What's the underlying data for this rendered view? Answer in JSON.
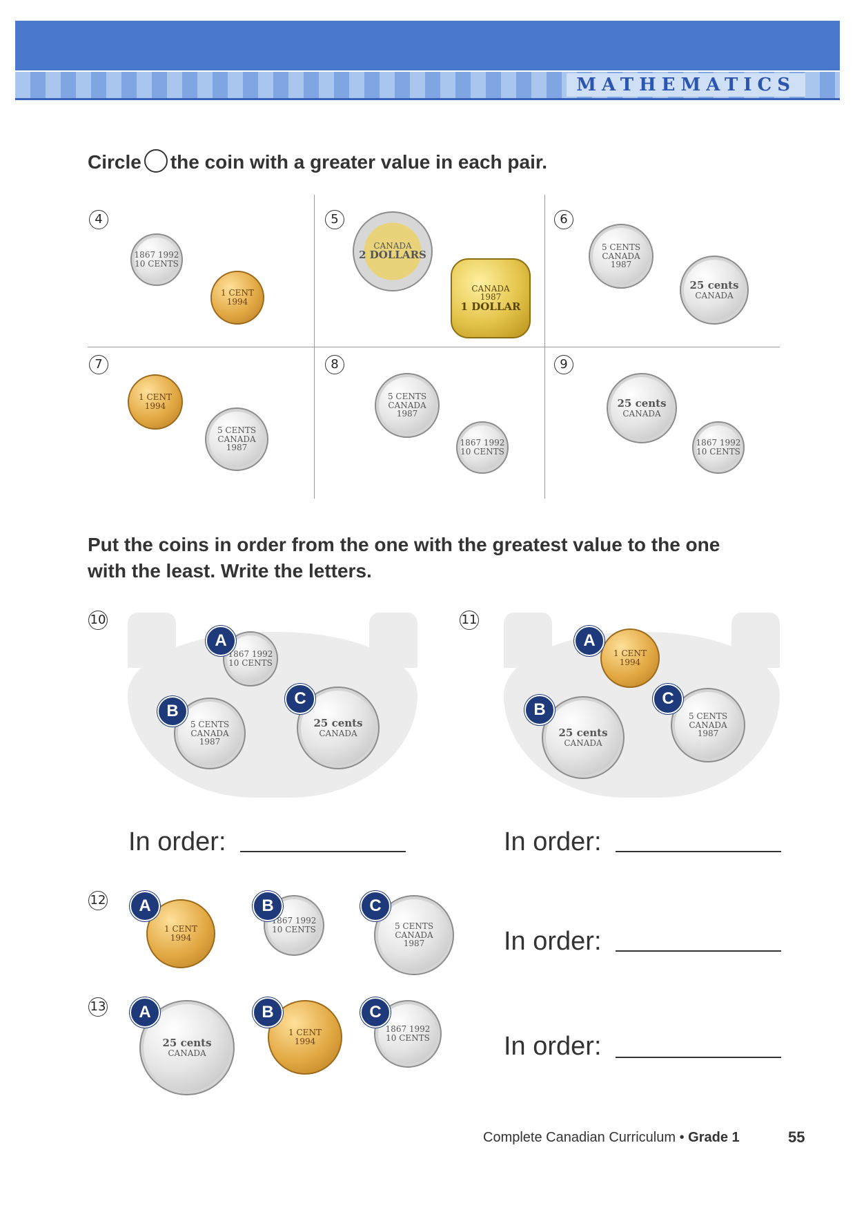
{
  "header": {
    "subject": "MATHEMATICS"
  },
  "section1": {
    "instruction_before": "Circle",
    "instruction_after": "the coin with a greater value in each pair.",
    "questions": [
      {
        "num": "4",
        "coins": [
          "10 CENTS",
          "1 CENT"
        ]
      },
      {
        "num": "5",
        "coins": [
          "2 DOLLARS",
          "1 DOLLAR"
        ]
      },
      {
        "num": "6",
        "coins": [
          "5 CENTS",
          "25 cents"
        ]
      },
      {
        "num": "7",
        "coins": [
          "1 CENT",
          "5 CENTS"
        ]
      },
      {
        "num": "8",
        "coins": [
          "5 CENTS",
          "10 CENTS"
        ]
      },
      {
        "num": "9",
        "coins": [
          "25 cents",
          "10 CENTS"
        ]
      }
    ]
  },
  "section2": {
    "instruction_line1": "Put the coins in order from the one with the greatest value to the one",
    "instruction_line2": "with the least.  Write the letters.",
    "in_order_label": "In order:",
    "questions": [
      {
        "num": "10",
        "coins": [
          {
            "letter": "A",
            "value": "10 CENTS"
          },
          {
            "letter": "B",
            "value": "5 CENTS"
          },
          {
            "letter": "C",
            "value": "25 cents"
          }
        ]
      },
      {
        "num": "11",
        "coins": [
          {
            "letter": "A",
            "value": "1 CENT"
          },
          {
            "letter": "B",
            "value": "25 cents"
          },
          {
            "letter": "C",
            "value": "5 CENTS"
          }
        ]
      },
      {
        "num": "12",
        "coins": [
          {
            "letter": "A",
            "value": "1 CENT"
          },
          {
            "letter": "B",
            "value": "10 CENTS"
          },
          {
            "letter": "C",
            "value": "5 CENTS"
          }
        ]
      },
      {
        "num": "13",
        "coins": [
          {
            "letter": "A",
            "value": "25 cents"
          },
          {
            "letter": "B",
            "value": "1 CENT"
          },
          {
            "letter": "C",
            "value": "10 CENTS"
          }
        ]
      }
    ]
  },
  "coin_text": {
    "canada": "CANADA",
    "year_1987": "1987",
    "year_1994": "1994",
    "years_1867_1992": "1867 1992"
  },
  "footer": {
    "book": "Complete Canadian Curriculum",
    "bullet": " • ",
    "grade": "Grade 1",
    "page": "55"
  },
  "colors": {
    "header_blue": "#4a78cc",
    "badge_navy": "#1f3a7a"
  }
}
